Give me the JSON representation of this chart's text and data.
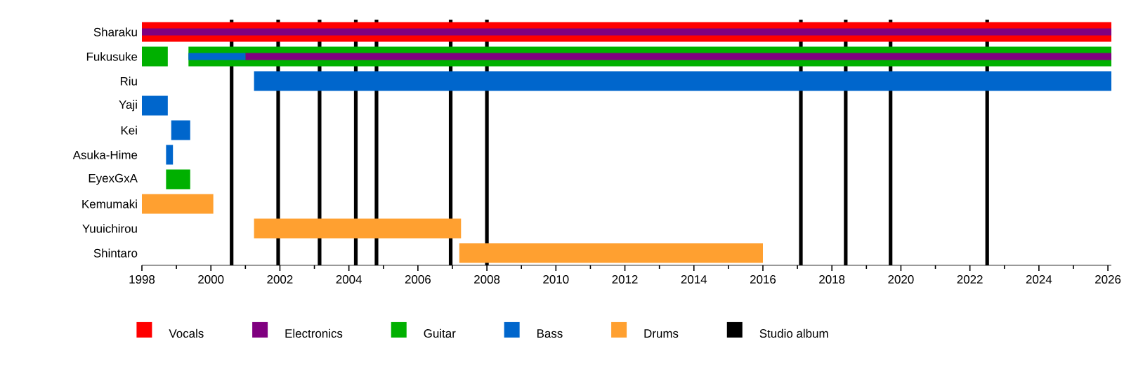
{
  "chart_data": {
    "type": "bar",
    "orientation": "horizontal",
    "legend": "bottom",
    "categories": [
      "Sharaku",
      "Fukusuke",
      "Riu",
      "Yaji",
      "Kei",
      "Asuka-Hime",
      "EyexGxA",
      "Kemumaki",
      "Yuuichirou",
      "Shintaro"
    ],
    "xlim": [
      1998,
      2026.1
    ],
    "xticks": [
      1998,
      2000,
      2002,
      2004,
      2006,
      2008,
      2010,
      2012,
      2014,
      2016,
      2018,
      2020,
      2022,
      2024,
      2026
    ],
    "series": [
      {
        "name": "Vocals",
        "color": "#ff0000",
        "base": [
          1998,
          null,
          null,
          null,
          null,
          null,
          null,
          null,
          null,
          null
        ],
        "values": [
          28.1,
          null,
          null,
          null,
          null,
          null,
          null,
          null,
          null,
          null
        ]
      },
      {
        "name": "Electronics",
        "color": "#800080",
        "base": [
          1998,
          2001,
          null,
          null,
          null,
          null,
          null,
          null,
          null,
          null
        ],
        "values": [
          28.1,
          25.1,
          null,
          null,
          null,
          null,
          null,
          null,
          null,
          null
        ]
      },
      {
        "name": "Guitar",
        "color": "#00b000",
        "base": [
          null,
          1998,
          null,
          null,
          null,
          null,
          1998.7,
          null,
          null,
          null
        ],
        "values": [
          null,
          0.75,
          null,
          null,
          null,
          null,
          0.7,
          null,
          null,
          null
        ]
      },
      {
        "name": "Bass",
        "color": "#0066cc",
        "base": [
          null,
          1999.35,
          2001.25,
          1998,
          1998.85,
          1998.7,
          null,
          null,
          null,
          null
        ],
        "values": [
          null,
          1.65,
          24.85,
          0.75,
          0.55,
          0.2,
          null,
          null,
          null,
          null
        ]
      },
      {
        "name": "Drums",
        "color": "#ffa030",
        "base": [
          null,
          null,
          null,
          null,
          null,
          null,
          null,
          1998,
          2001.25,
          2007.2
        ],
        "values": [
          null,
          null,
          null,
          null,
          null,
          null,
          null,
          2.07,
          6.0,
          8.8
        ]
      },
      {
        "color": "#00b000",
        "base": [
          null,
          1999.35,
          null,
          null,
          null,
          null,
          null,
          null,
          null,
          null
        ],
        "values": [
          null,
          26.75,
          null,
          null,
          null,
          null,
          null,
          null,
          null,
          null
        ]
      }
    ],
    "ref_lines": [
      {
        "axis": "x",
        "value": 2000.6,
        "color": "#000000",
        "label": "Studio album"
      },
      {
        "axis": "x",
        "value": 2001.95,
        "color": "#000000"
      },
      {
        "axis": "x",
        "value": 2003.15,
        "color": "#000000"
      },
      {
        "axis": "x",
        "value": 2004.2,
        "color": "#000000"
      },
      {
        "axis": "x",
        "value": 2004.8,
        "color": "#000000"
      },
      {
        "axis": "x",
        "value": 2006.95,
        "color": "#000000"
      },
      {
        "axis": "x",
        "value": 2008.0,
        "color": "#000000"
      },
      {
        "axis": "x",
        "value": 2017.1,
        "color": "#000000"
      },
      {
        "axis": "x",
        "value": 2018.4,
        "color": "#000000"
      },
      {
        "axis": "x",
        "value": 2019.7,
        "color": "#000000"
      },
      {
        "axis": "x",
        "value": 2022.5,
        "color": "#000000"
      }
    ]
  }
}
